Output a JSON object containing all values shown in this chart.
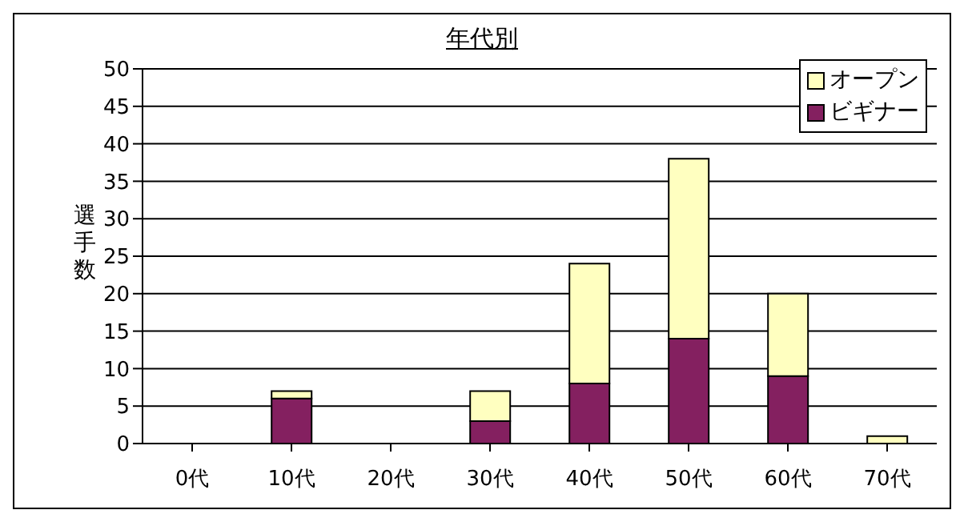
{
  "chart_data": {
    "type": "bar",
    "title": "年代別",
    "ylabel": "選手数",
    "categories": [
      "0代",
      "10代",
      "20代",
      "30代",
      "40代",
      "50代",
      "60代",
      "70代"
    ],
    "stacked": true,
    "series": [
      {
        "name": "ビギナー",
        "color": "#842060",
        "values": [
          0,
          6,
          0,
          3,
          8,
          14,
          9,
          0
        ]
      },
      {
        "name": "オープン",
        "color": "#ffffc0",
        "values": [
          0,
          1,
          0,
          4,
          16,
          24,
          11,
          1
        ]
      }
    ],
    "ylim": [
      0,
      50
    ],
    "yticks": [
      0,
      5,
      10,
      15,
      20,
      25,
      30,
      35,
      40,
      45,
      50
    ],
    "grid": "y",
    "legend": "top right"
  }
}
